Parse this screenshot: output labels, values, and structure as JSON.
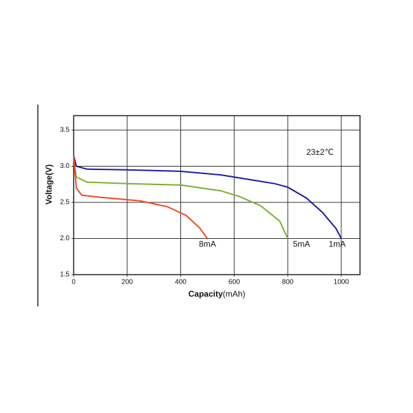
{
  "chart_data": {
    "type": "line",
    "y_label": "Voltage(V)",
    "x_label": "Capacity",
    "x_label_unit": "(mAh)",
    "annotation": "23±2℃",
    "xlim": [
      0,
      1070
    ],
    "xticks": [
      0,
      200,
      400,
      600,
      800,
      1000
    ],
    "ylim": [
      1.5,
      3.7
    ],
    "yticks": [
      1.5,
      {
        "value": 2,
        "label": "2.0"
      },
      2.5,
      {
        "value": 3,
        "label": "3.0"
      },
      3.5
    ],
    "grid": true,
    "series": [
      {
        "name": "1mA",
        "color": "#1c1ca8",
        "x": [
          0,
          10,
          50,
          200,
          400,
          550,
          650,
          750,
          800,
          870,
          930,
          980,
          1000
        ],
        "values": [
          3.15,
          3.0,
          2.96,
          2.95,
          2.93,
          2.88,
          2.82,
          2.76,
          2.71,
          2.56,
          2.36,
          2.14,
          2.0
        ]
      },
      {
        "name": "5mA",
        "color": "#7cb02c",
        "x": [
          0,
          10,
          50,
          200,
          400,
          550,
          620,
          700,
          770,
          800
        ],
        "values": [
          3.1,
          2.85,
          2.78,
          2.76,
          2.74,
          2.66,
          2.58,
          2.45,
          2.24,
          2.0
        ]
      },
      {
        "name": "8mA",
        "color": "#f04a23",
        "x": [
          0,
          10,
          30,
          100,
          250,
          350,
          420,
          470,
          500
        ],
        "values": [
          3.15,
          2.7,
          2.6,
          2.57,
          2.52,
          2.44,
          2.32,
          2.15,
          2.0
        ]
      }
    ]
  }
}
